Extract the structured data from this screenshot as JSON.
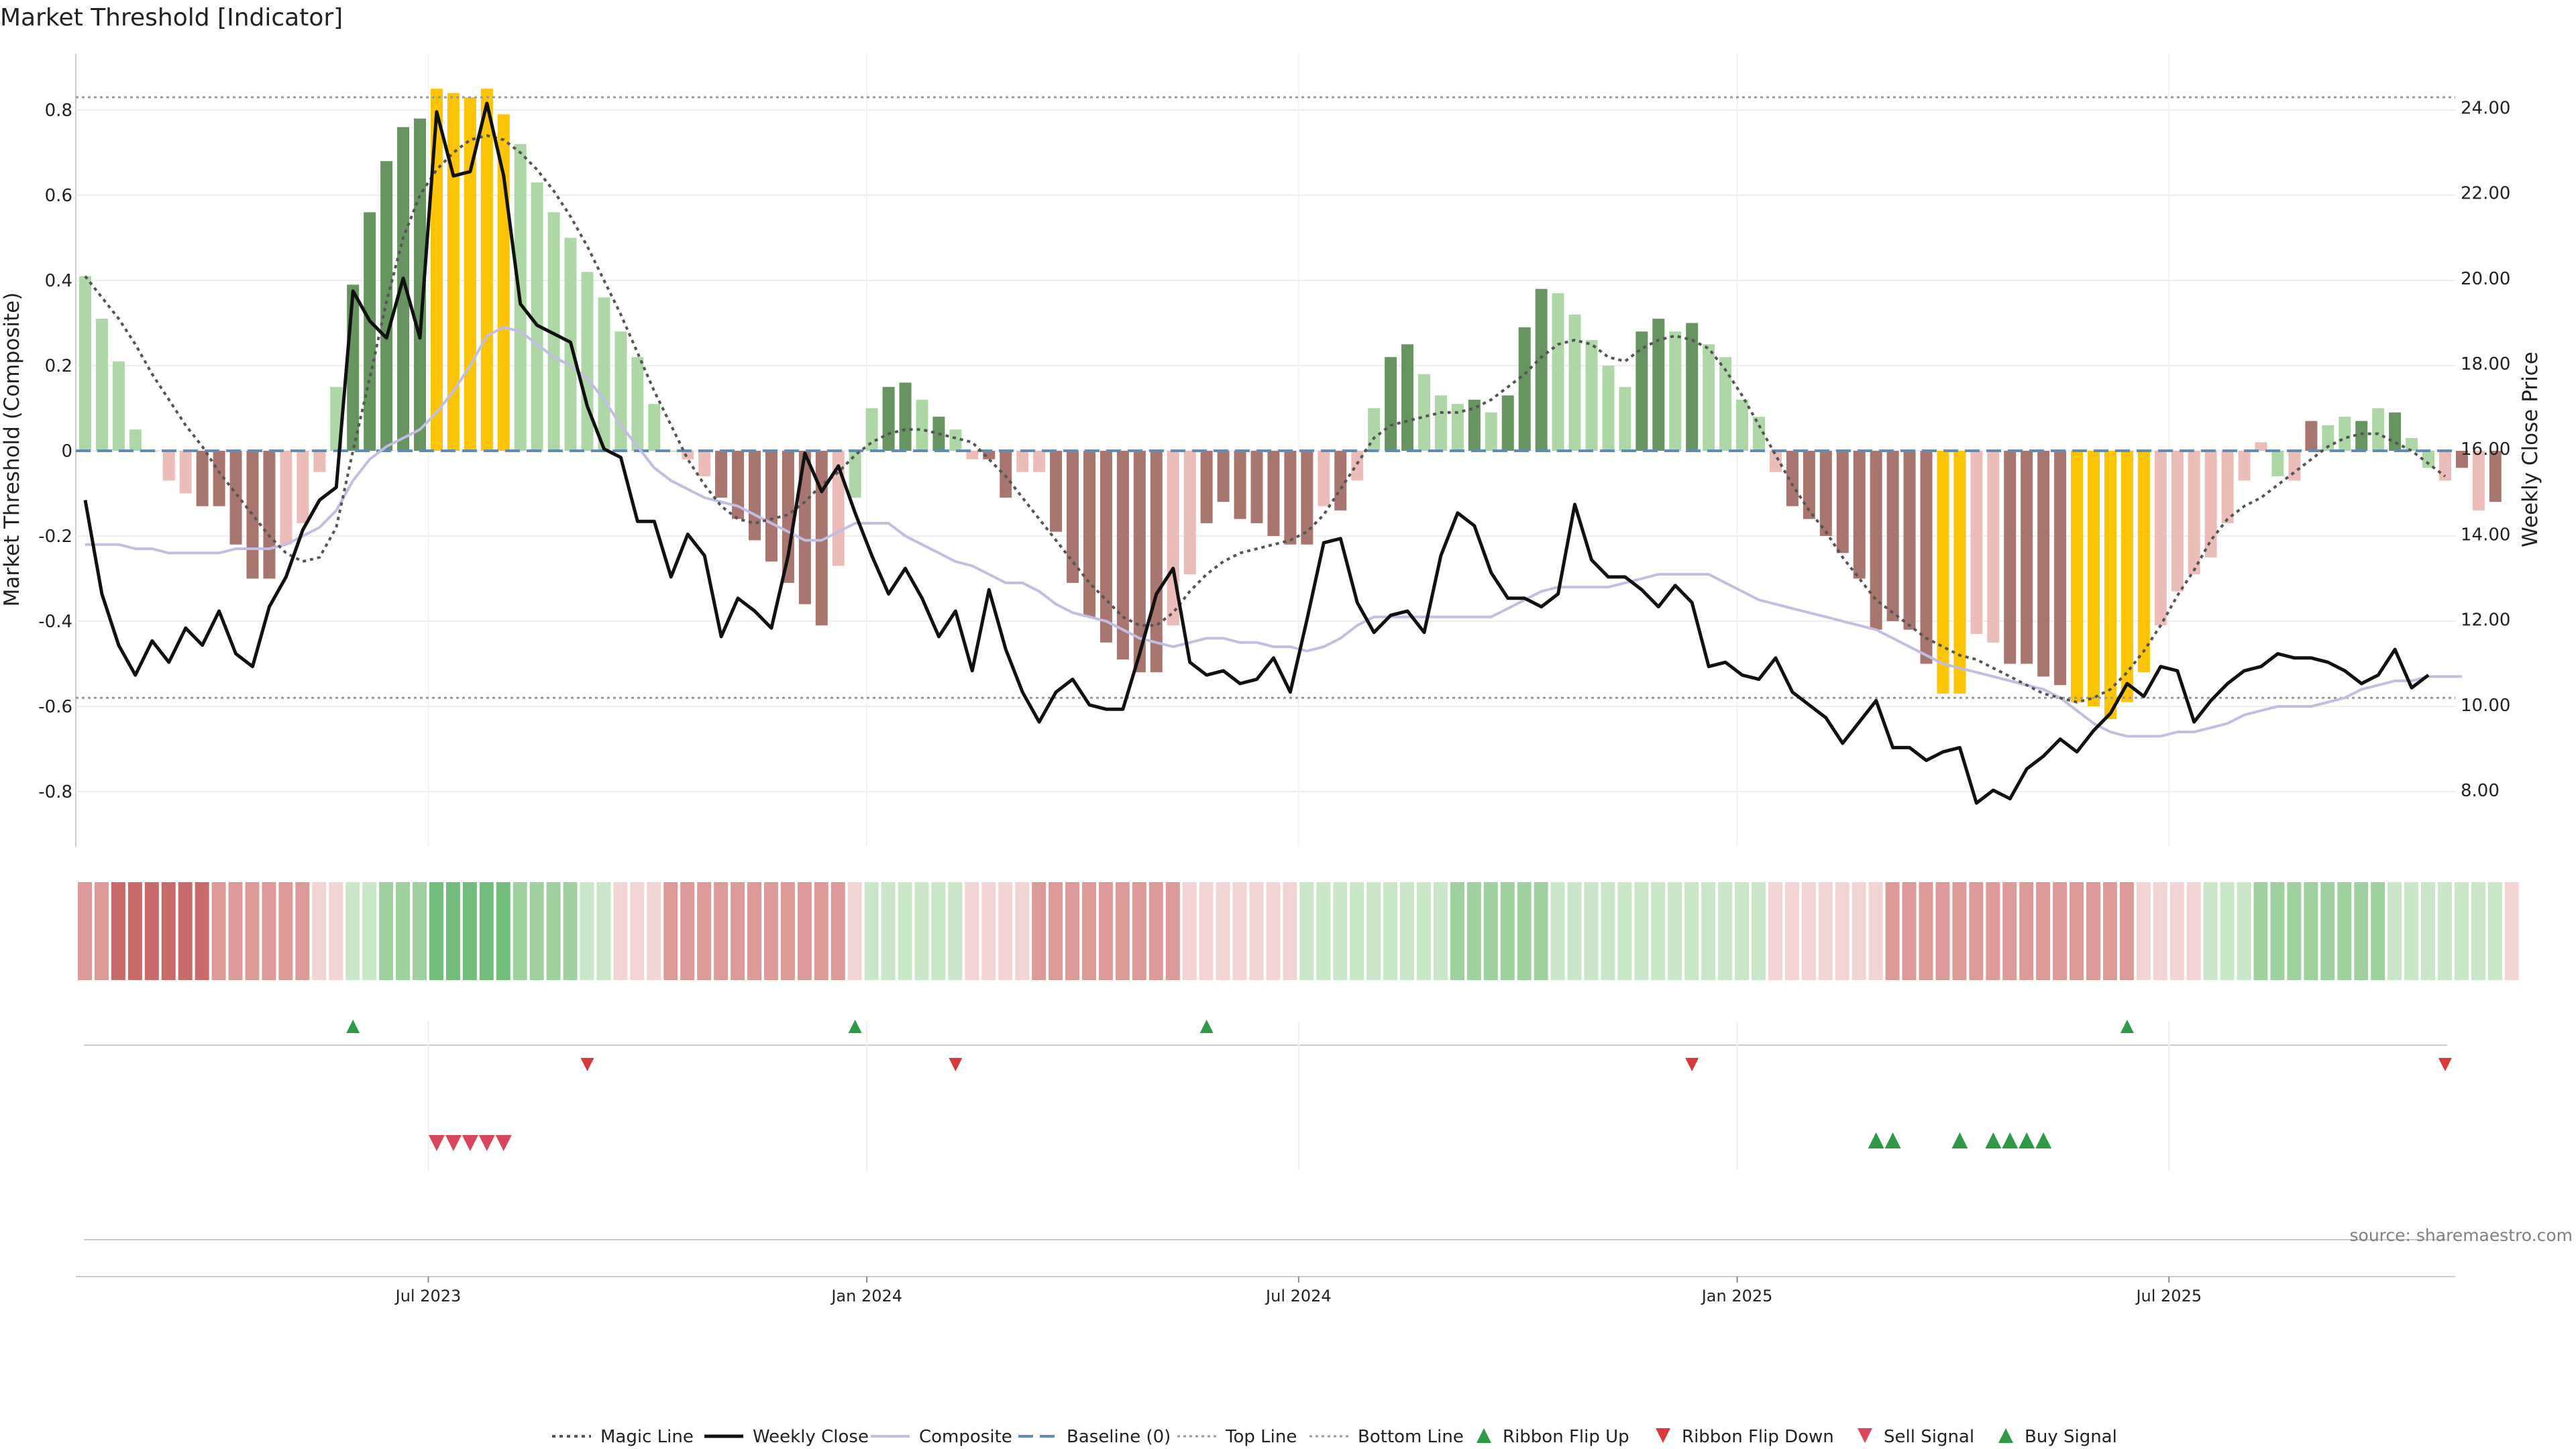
{
  "chart_data": {
    "type": "bar",
    "title": "Market Threshold [Indicator]",
    "source": "source: sharemaestro.com",
    "ylabel_left": "Market Threshold (Composite)",
    "ylabel_right": "Weekly Close Price",
    "ylim_left": [
      -0.95,
      0.95
    ],
    "ylim_right": [
      6.83,
      25.4
    ],
    "left_ticks": [
      {
        "v": 0.8,
        "label": "0.8"
      },
      {
        "v": 0.6,
        "label": "0.6"
      },
      {
        "v": 0.4,
        "label": "0.4"
      },
      {
        "v": 0.2,
        "label": "0.2"
      },
      {
        "v": 0,
        "label": "0"
      },
      {
        "v": -0.2,
        "label": "-0.2"
      },
      {
        "v": -0.4,
        "label": "-0.4"
      },
      {
        "v": -0.6,
        "label": "-0.6"
      },
      {
        "v": -0.8,
        "label": "-0.8"
      }
    ],
    "right_ticks": [
      {
        "v": 24,
        "label": "24.00"
      },
      {
        "v": 22,
        "label": "22.00"
      },
      {
        "v": 20,
        "label": "20.00"
      },
      {
        "v": 18,
        "label": "18.00"
      },
      {
        "v": 16,
        "label": "16.00"
      },
      {
        "v": 14,
        "label": "14.00"
      },
      {
        "v": 12,
        "label": "12.00"
      },
      {
        "v": 10,
        "label": "10.00"
      },
      {
        "v": 8,
        "label": "8.00"
      }
    ],
    "x_ticks": [
      {
        "i": 20.5,
        "label": "Jul 2023"
      },
      {
        "i": 46.7,
        "label": "Jan 2024"
      },
      {
        "i": 72.5,
        "label": "Jul 2024"
      },
      {
        "i": 98.7,
        "label": "Jan 2025"
      },
      {
        "i": 124.5,
        "label": "Jul 2025"
      }
    ],
    "top_line": 0.83,
    "bottom_line": -0.58,
    "baseline": 0,
    "composite_values": [
      0.41,
      0.31,
      0.21,
      0.05,
      0,
      -0.07,
      -0.1,
      -0.13,
      -0.13,
      -0.22,
      -0.3,
      -0.3,
      -0.22,
      -0.17,
      -0.05,
      0.15,
      0.39,
      0.56,
      0.68,
      0.76,
      0.78,
      0.85,
      0.84,
      0.83,
      0.85,
      0.79,
      0.72,
      0.63,
      0.56,
      0.5,
      0.42,
      0.36,
      0.28,
      0.22,
      0.11,
      0,
      -0.02,
      -0.06,
      -0.11,
      -0.16,
      -0.21,
      -0.26,
      -0.31,
      -0.36,
      -0.41,
      -0.27,
      -0.11,
      0.1,
      0.15,
      0.16,
      0.12,
      0.08,
      0.05,
      -0.02,
      -0.02,
      -0.11,
      -0.05,
      -0.05,
      -0.19,
      -0.31,
      -0.39,
      -0.45,
      -0.49,
      -0.52,
      -0.52,
      -0.41,
      -0.29,
      -0.17,
      -0.12,
      -0.16,
      -0.17,
      -0.2,
      -0.22,
      -0.22,
      -0.13,
      -0.14,
      -0.07,
      0.1,
      0.22,
      0.25,
      0.18,
      0.13,
      0.11,
      0.12,
      0.09,
      0.13,
      0.29,
      0.38,
      0.37,
      0.32,
      0.26,
      0.2,
      0.15,
      0.28,
      0.31,
      0.28,
      0.3,
      0.25,
      0.22,
      0.12,
      0.08,
      -0.05,
      -0.13,
      -0.16,
      -0.2,
      -0.24,
      -0.3,
      -0.42,
      -0.4,
      -0.42,
      -0.5,
      -0.57,
      -0.57,
      -0.43,
      -0.45,
      -0.5,
      -0.5,
      -0.53,
      -0.55,
      -0.59,
      -0.6,
      -0.63,
      -0.59,
      -0.52,
      -0.41,
      -0.33,
      -0.29,
      -0.25,
      -0.17,
      -0.07,
      0.02,
      -0.06,
      -0.07,
      0.07,
      0.06,
      0.08,
      0.07,
      0.1,
      0.09,
      0.03,
      -0.04,
      -0.07,
      -0.04,
      -0.14,
      -0.12
    ],
    "bar_category": [
      1,
      1,
      1,
      1,
      1,
      2,
      2,
      3,
      3,
      3,
      3,
      3,
      2,
      2,
      2,
      1,
      0,
      0,
      0,
      0,
      0,
      4,
      4,
      4,
      4,
      4,
      1,
      1,
      1,
      1,
      1,
      1,
      1,
      1,
      1,
      1,
      2,
      2,
      3,
      3,
      3,
      3,
      3,
      3,
      3,
      2,
      1,
      1,
      0,
      0,
      1,
      0,
      1,
      2,
      3,
      3,
      2,
      2,
      3,
      3,
      3,
      3,
      3,
      3,
      3,
      2,
      2,
      3,
      3,
      3,
      3,
      3,
      3,
      3,
      2,
      3,
      2,
      1,
      0,
      0,
      1,
      1,
      1,
      0,
      1,
      0,
      0,
      0,
      1,
      1,
      1,
      1,
      1,
      0,
      0,
      1,
      0,
      1,
      1,
      1,
      1,
      2,
      3,
      3,
      3,
      3,
      3,
      3,
      3,
      3,
      3,
      4,
      4,
      2,
      2,
      3,
      3,
      3,
      3,
      4,
      4,
      4,
      4,
      4,
      2,
      2,
      2,
      2,
      2,
      2,
      2,
      1,
      2,
      3,
      1,
      1,
      0,
      1,
      0,
      1,
      1,
      2,
      3,
      2,
      3,
      2
    ],
    "weekly_close": [
      14.8,
      12.6,
      11.4,
      10.7,
      11.5,
      11.0,
      11.8,
      11.4,
      12.2,
      11.2,
      10.9,
      12.3,
      13.0,
      14.1,
      14.8,
      15.1,
      19.7,
      19.0,
      18.6,
      20.0,
      18.6,
      23.9,
      22.4,
      22.5,
      24.1,
      22.4,
      19.4,
      18.9,
      18.7,
      18.5,
      17.0,
      16.0,
      15.8,
      14.3,
      14.3,
      13.0,
      14.0,
      13.5,
      11.6,
      12.5,
      12.2,
      11.8,
      13.5,
      15.9,
      15.0,
      15.6,
      14.5,
      13.5,
      12.6,
      13.2,
      12.5,
      11.6,
      12.2,
      10.8,
      12.7,
      11.3,
      10.3,
      9.6,
      10.3,
      10.6,
      10.0,
      9.9,
      9.9,
      11.2,
      12.6,
      13.2,
      11.0,
      10.7,
      10.8,
      10.5,
      10.6,
      11.1,
      10.3,
      12.0,
      13.8,
      13.9,
      12.4,
      11.7,
      12.1,
      12.2,
      11.7,
      13.5,
      14.5,
      14.2,
      13.1,
      12.5,
      12.5,
      12.3,
      12.6,
      14.7,
      13.4,
      13.0,
      13.0,
      12.7,
      12.3,
      12.8,
      12.4,
      10.9,
      11.0,
      10.7,
      10.6,
      11.1,
      10.3,
      10.0,
      9.7,
      9.1,
      9.6,
      10.1,
      9.0,
      9.0,
      8.7,
      8.9,
      9.0,
      7.7,
      8.0,
      7.8,
      8.5,
      8.8,
      9.2,
      8.9,
      9.4,
      9.8,
      10.5,
      10.2,
      10.9,
      10.8,
      9.6,
      10.1,
      10.5,
      10.8,
      10.9,
      11.2,
      11.1,
      11.1,
      11.0,
      10.8,
      10.5,
      10.7,
      11.3,
      10.4,
      10.7
    ],
    "composite_line": [
      -0.22,
      -0.22,
      -0.22,
      -0.23,
      -0.23,
      -0.24,
      -0.24,
      -0.24,
      -0.24,
      -0.23,
      -0.23,
      -0.23,
      -0.22,
      -0.2,
      -0.18,
      -0.14,
      -0.07,
      -0.02,
      0.01,
      0.03,
      0.05,
      0.09,
      0.14,
      0.2,
      0.27,
      0.29,
      0.28,
      0.25,
      0.22,
      0.2,
      0.17,
      0.12,
      0.06,
      0.01,
      -0.04,
      -0.07,
      -0.09,
      -0.11,
      -0.12,
      -0.13,
      -0.15,
      -0.17,
      -0.19,
      -0.21,
      -0.21,
      -0.19,
      -0.17,
      -0.17,
      -0.17,
      -0.2,
      -0.22,
      -0.24,
      -0.26,
      -0.27,
      -0.29,
      -0.31,
      -0.31,
      -0.33,
      -0.36,
      -0.38,
      -0.39,
      -0.4,
      -0.42,
      -0.44,
      -0.45,
      -0.46,
      -0.45,
      -0.44,
      -0.44,
      -0.45,
      -0.45,
      -0.46,
      -0.46,
      -0.47,
      -0.46,
      -0.44,
      -0.41,
      -0.39,
      -0.39,
      -0.39,
      -0.39,
      -0.39,
      -0.39,
      -0.39,
      -0.39,
      -0.37,
      -0.35,
      -0.33,
      -0.32,
      -0.32,
      -0.32,
      -0.32,
      -0.31,
      -0.3,
      -0.29,
      -0.29,
      -0.29,
      -0.29,
      -0.31,
      -0.33,
      -0.35,
      -0.36,
      -0.37,
      -0.38,
      -0.39,
      -0.4,
      -0.41,
      -0.42,
      -0.44,
      -0.46,
      -0.48,
      -0.5,
      -0.51,
      -0.52,
      -0.53,
      -0.54,
      -0.55,
      -0.56,
      -0.58,
      -0.61,
      -0.64,
      -0.66,
      -0.67,
      -0.67,
      -0.67,
      -0.66,
      -0.66,
      -0.65,
      -0.64,
      -0.62,
      -0.61,
      -0.6,
      -0.6,
      -0.6,
      -0.59,
      -0.58,
      -0.56,
      -0.55,
      -0.54,
      -0.54,
      -0.53,
      -0.53,
      -0.53
    ],
    "magic_line": [
      0.41,
      0.36,
      0.31,
      0.25,
      0.18,
      0.12,
      0.06,
      0.01,
      -0.05,
      -0.1,
      -0.15,
      -0.2,
      -0.24,
      -0.26,
      -0.25,
      -0.18,
      0,
      0.17,
      0.35,
      0.5,
      0.6,
      0.66,
      0.7,
      0.73,
      0.74,
      0.73,
      0.7,
      0.66,
      0.61,
      0.55,
      0.48,
      0.4,
      0.32,
      0.23,
      0.14,
      0.06,
      -0.02,
      -0.08,
      -0.13,
      -0.16,
      -0.17,
      -0.16,
      -0.15,
      -0.12,
      -0.08,
      -0.05,
      -0.01,
      0.02,
      0.04,
      0.05,
      0.05,
      0.04,
      0.03,
      0.02,
      -0.02,
      -0.06,
      -0.11,
      -0.16,
      -0.21,
      -0.26,
      -0.31,
      -0.35,
      -0.39,
      -0.41,
      -0.41,
      -0.38,
      -0.33,
      -0.29,
      -0.26,
      -0.24,
      -0.23,
      -0.22,
      -0.21,
      -0.19,
      -0.15,
      -0.09,
      -0.03,
      0.03,
      0.06,
      0.07,
      0.08,
      0.09,
      0.09,
      0.1,
      0.12,
      0.15,
      0.18,
      0.22,
      0.25,
      0.26,
      0.25,
      0.22,
      0.21,
      0.24,
      0.26,
      0.27,
      0.26,
      0.24,
      0.19,
      0.13,
      0.06,
      -0.01,
      -0.08,
      -0.14,
      -0.19,
      -0.25,
      -0.3,
      -0.35,
      -0.38,
      -0.41,
      -0.44,
      -0.46,
      -0.48,
      -0.49,
      -0.51,
      -0.53,
      -0.55,
      -0.57,
      -0.58,
      -0.59,
      -0.58,
      -0.56,
      -0.52,
      -0.47,
      -0.41,
      -0.34,
      -0.28,
      -0.21,
      -0.16,
      -0.13,
      -0.11,
      -0.08,
      -0.05,
      -0.02,
      0.01,
      0.03,
      0.04,
      0.04,
      0.02,
      0.0,
      -0.03,
      -0.06
    ],
    "ribbon": [
      -2,
      -2,
      -3,
      -3,
      -3,
      -3,
      -3,
      -3,
      -2,
      -2,
      -2,
      -2,
      -2,
      -2,
      -1,
      -1,
      1,
      1,
      2,
      2,
      2,
      3,
      3,
      3,
      3,
      3,
      2,
      2,
      2,
      2,
      1,
      1,
      -1,
      -1,
      -1,
      -2,
      -2,
      -2,
      -2,
      -2,
      -2,
      -2,
      -2,
      -2,
      -2,
      -2,
      -1,
      1,
      1,
      1,
      1,
      1,
      1,
      -1,
      -1,
      -1,
      -1,
      -2,
      -2,
      -2,
      -2,
      -2,
      -2,
      -2,
      -2,
      -2,
      -1,
      -1,
      -1,
      -1,
      -1,
      -1,
      -1,
      1,
      1,
      1,
      1,
      1,
      1,
      1,
      1,
      1,
      2,
      2,
      2,
      2,
      2,
      2,
      1,
      1,
      1,
      1,
      1,
      1,
      1,
      1,
      1,
      1,
      1,
      1,
      1,
      -1,
      -1,
      -1,
      -1,
      -1,
      -1,
      -1,
      -2,
      -2,
      -2,
      -2,
      -2,
      -2,
      -2,
      -2,
      -2,
      -2,
      -2,
      -2,
      -2,
      -2,
      -2,
      -1,
      -1,
      -1,
      -1,
      1,
      1,
      1,
      2,
      2,
      2,
      2,
      2,
      2,
      2,
      2,
      1,
      1,
      1,
      1,
      1,
      1,
      1,
      -1
    ],
    "ribbon_flip_up": [
      16,
      46,
      67,
      122
    ],
    "ribbon_flip_down": [
      30,
      52,
      96,
      141
    ],
    "sell_signals": [
      21,
      22,
      23,
      24,
      25
    ],
    "buy_signals": [
      107,
      108,
      112,
      114,
      115,
      116,
      117
    ],
    "legend": [
      {
        "label": "Magic Line"
      },
      {
        "label": "Weekly Close"
      },
      {
        "label": "Composite"
      },
      {
        "label": "Baseline (0)"
      },
      {
        "label": "Top Line"
      },
      {
        "label": "Bottom Line"
      },
      {
        "label": "Ribbon Flip Up"
      },
      {
        "label": "Ribbon Flip Down"
      },
      {
        "label": "Sell Signal"
      },
      {
        "label": "Buy Signal"
      }
    ],
    "colors": {
      "strong_up": "#66955f",
      "light_up": "#add8a6",
      "light_down": "#ebbcb8",
      "strong_down": "#a9756f",
      "extreme": "#fbc404",
      "weekly_close": "#111111",
      "composite": "#c2bde2",
      "magic": "#555555",
      "baseline": "#5b8db8",
      "threshold": "#999999",
      "signal_up": "#2f9a46",
      "signal_down": "#d63a3a",
      "sell": "#d8455c"
    }
  }
}
